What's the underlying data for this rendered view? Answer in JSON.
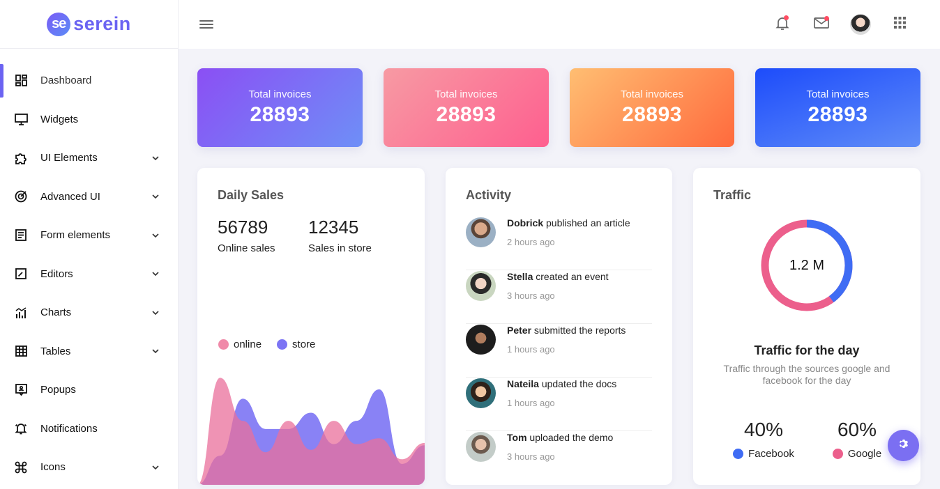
{
  "app": {
    "logo_badge": "se",
    "logo_text": "serein"
  },
  "sidebar": {
    "items": [
      {
        "label": "Dashboard",
        "icon": "dashboard-icon",
        "active": true,
        "expandable": false
      },
      {
        "label": "Widgets",
        "icon": "monitor-icon",
        "expandable": false
      },
      {
        "label": "UI Elements",
        "icon": "puzzle-icon",
        "expandable": true
      },
      {
        "label": "Advanced UI",
        "icon": "target-icon",
        "expandable": true
      },
      {
        "label": "Form elements",
        "icon": "form-icon",
        "expandable": true
      },
      {
        "label": "Editors",
        "icon": "editor-icon",
        "expandable": true
      },
      {
        "label": "Charts",
        "icon": "chart-icon",
        "expandable": true
      },
      {
        "label": "Tables",
        "icon": "table-icon",
        "expandable": true
      },
      {
        "label": "Popups",
        "icon": "popup-icon",
        "expandable": false
      },
      {
        "label": "Notifications",
        "icon": "bell-icon",
        "expandable": false
      },
      {
        "label": "Icons",
        "icon": "command-icon",
        "expandable": true
      }
    ]
  },
  "header": {
    "icons": [
      "menu-icon",
      "bell-icon",
      "mail-icon",
      "avatar",
      "apps-grid-icon"
    ],
    "badge_color": "#ff4d63"
  },
  "stats": [
    {
      "title": "Total invoices",
      "value": "28893",
      "gradient": [
        "#8b4ff4",
        "#6e8ff7"
      ]
    },
    {
      "title": "Total invoices",
      "value": "28893",
      "gradient": [
        "#f79aa3",
        "#fe5f8f"
      ]
    },
    {
      "title": "Total invoices",
      "value": "28893",
      "gradient": [
        "#ffbe72",
        "#ff6a3d"
      ]
    },
    {
      "title": "Total invoices",
      "value": "28893",
      "gradient": [
        "#1d4cfb",
        "#5f8cf8"
      ]
    }
  ],
  "daily_sales": {
    "title": "Daily Sales",
    "online_value": "56789",
    "online_label": "Online sales",
    "store_value": "12345",
    "store_label": "Sales in store",
    "legend": [
      {
        "label": "online",
        "color": "#f08aa9"
      },
      {
        "label": "store",
        "color": "#7c74f4"
      }
    ]
  },
  "activity": {
    "title": "Activity",
    "items": [
      {
        "name": "Dobrick",
        "action": "published an article",
        "time": "2 hours ago"
      },
      {
        "name": "Stella",
        "action": "created an event",
        "time": "3 hours ago"
      },
      {
        "name": "Peter",
        "action": "submitted the reports",
        "time": "1 hours ago"
      },
      {
        "name": "Nateila",
        "action": "updated the docs",
        "time": "1 hours ago"
      },
      {
        "name": "Tom",
        "action": "uploaded the demo",
        "time": "3 hours ago"
      }
    ]
  },
  "traffic": {
    "title": "Traffic",
    "center_value": "1.2 M",
    "heading": "Traffic for the day",
    "description": "Traffic through the sources google and facebook for the day",
    "sources": [
      {
        "percent": "40%",
        "label": "Facebook",
        "color": "#3f6cf4"
      },
      {
        "percent": "60%",
        "label": "Google",
        "color": "#ec5f8c"
      }
    ]
  },
  "fab": {
    "icon": "settings-icon",
    "color": "#7b6ff2"
  },
  "chart_data": {
    "type": "area",
    "series": [
      {
        "name": "online",
        "values": [
          0,
          92,
          55,
          28,
          55,
          30,
          55,
          35,
          40,
          22,
          36
        ]
      },
      {
        "name": "store",
        "values": [
          0,
          25,
          74,
          48,
          48,
          62,
          35,
          55,
          82,
          18,
          34
        ]
      }
    ]
  }
}
